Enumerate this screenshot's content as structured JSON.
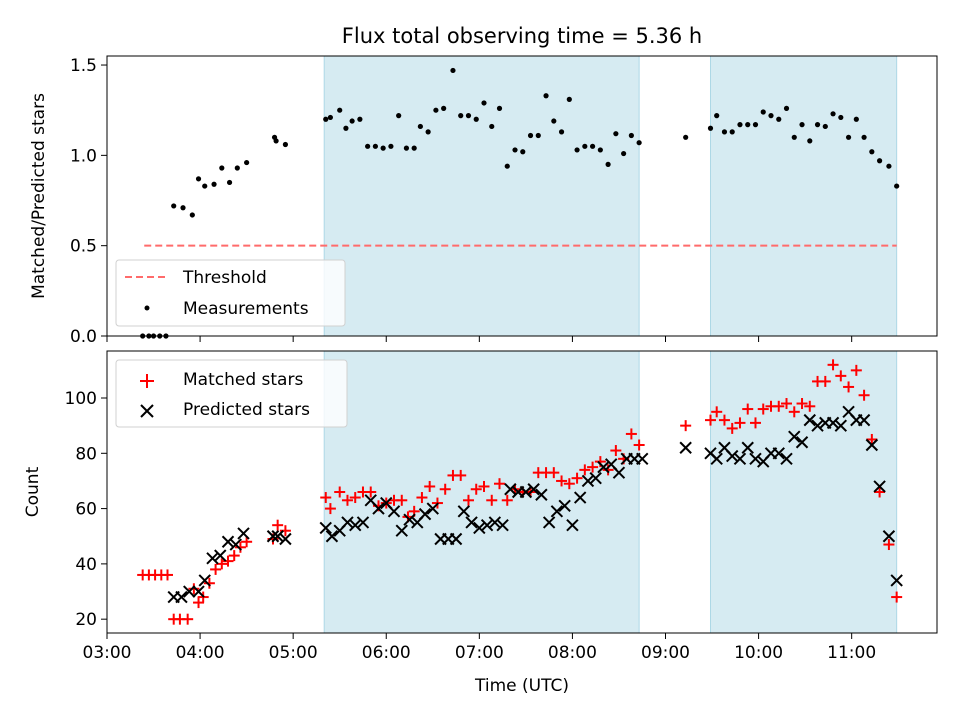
{
  "title": "Flux total observing time = 5.36 h",
  "colors": {
    "shade": "#add8e6",
    "threshold": "#ff6b6b",
    "measurement": "#000000",
    "matched": "#ff0000",
    "predicted": "#000000"
  },
  "chart_data": [
    {
      "type": "scatter",
      "panel": "top",
      "xlabel": "",
      "ylabel": "Matched/Predicted stars",
      "xlim": [
        "03:00",
        "11:55"
      ],
      "ylim": [
        0,
        1.55
      ],
      "yticks": [
        "0.0",
        "0.5",
        "1.0",
        "1.5"
      ],
      "shaded_intervals": [
        [
          "05:20",
          "08:43"
        ],
        [
          "09:29",
          "11:29"
        ]
      ],
      "legend_position": "lower-left",
      "legend": [
        "Threshold",
        "Measurements"
      ],
      "threshold": {
        "name": "Threshold",
        "y": 0.5,
        "x_range": [
          "03:24",
          "11:29"
        ]
      },
      "series": [
        {
          "name": "Measurements",
          "points": [
            [
              "03:23",
              0
            ],
            [
              "03:27",
              0
            ],
            [
              "03:30",
              0
            ],
            [
              "03:34",
              0
            ],
            [
              "03:38",
              0
            ],
            [
              "03:43",
              0.72
            ],
            [
              "03:49",
              0.71
            ],
            [
              "03:55",
              0.67
            ],
            [
              "03:59",
              0.87
            ],
            [
              "04:03",
              0.83
            ],
            [
              "04:09",
              0.84
            ],
            [
              "04:14",
              0.93
            ],
            [
              "04:19",
              0.85
            ],
            [
              "04:24",
              0.93
            ],
            [
              "04:30",
              0.96
            ],
            [
              "04:48",
              1.1
            ],
            [
              "04:49",
              1.08
            ],
            [
              "04:55",
              1.06
            ],
            [
              "05:21",
              1.2
            ],
            [
              "05:24",
              1.21
            ],
            [
              "05:30",
              1.25
            ],
            [
              "05:34",
              1.15
            ],
            [
              "05:38",
              1.19
            ],
            [
              "05:43",
              1.2
            ],
            [
              "05:48",
              1.05
            ],
            [
              "05:53",
              1.05
            ],
            [
              "05:58",
              1.04
            ],
            [
              "06:03",
              1.05
            ],
            [
              "06:08",
              1.22
            ],
            [
              "06:13",
              1.04
            ],
            [
              "06:18",
              1.04
            ],
            [
              "06:22",
              1.16
            ],
            [
              "06:27",
              1.13
            ],
            [
              "06:32",
              1.25
            ],
            [
              "06:37",
              1.26
            ],
            [
              "06:43",
              1.47
            ],
            [
              "06:48",
              1.22
            ],
            [
              "06:53",
              1.22
            ],
            [
              "06:58",
              1.2
            ],
            [
              "07:03",
              1.29
            ],
            [
              "07:08",
              1.16
            ],
            [
              "07:13",
              1.26
            ],
            [
              "07:18",
              0.94
            ],
            [
              "07:23",
              1.03
            ],
            [
              "07:28",
              1.02
            ],
            [
              "07:33",
              1.11
            ],
            [
              "07:38",
              1.11
            ],
            [
              "07:43",
              1.33
            ],
            [
              "07:48",
              1.19
            ],
            [
              "07:53",
              1.13
            ],
            [
              "07:58",
              1.31
            ],
            [
              "08:03",
              1.03
            ],
            [
              "08:08",
              1.05
            ],
            [
              "08:13",
              1.05
            ],
            [
              "08:18",
              1.03
            ],
            [
              "08:23",
              0.95
            ],
            [
              "08:28",
              1.12
            ],
            [
              "08:33",
              1.01
            ],
            [
              "08:38",
              1.11
            ],
            [
              "08:43",
              1.07
            ],
            [
              "09:13",
              1.1
            ],
            [
              "09:29",
              1.15
            ],
            [
              "09:33",
              1.22
            ],
            [
              "09:38",
              1.13
            ],
            [
              "09:43",
              1.13
            ],
            [
              "09:48",
              1.17
            ],
            [
              "09:53",
              1.17
            ],
            [
              "09:58",
              1.17
            ],
            [
              "10:03",
              1.24
            ],
            [
              "10:08",
              1.22
            ],
            [
              "10:13",
              1.2
            ],
            [
              "10:18",
              1.26
            ],
            [
              "10:23",
              1.1
            ],
            [
              "10:28",
              1.17
            ],
            [
              "10:33",
              1.08
            ],
            [
              "10:38",
              1.17
            ],
            [
              "10:43",
              1.16
            ],
            [
              "10:48",
              1.23
            ],
            [
              "10:53",
              1.21
            ],
            [
              "10:58",
              1.1
            ],
            [
              "11:03",
              1.2
            ],
            [
              "11:08",
              1.1
            ],
            [
              "11:13",
              1.02
            ],
            [
              "11:18",
              0.97
            ],
            [
              "11:24",
              0.94
            ],
            [
              "11:29",
              0.83
            ]
          ]
        }
      ]
    },
    {
      "type": "scatter",
      "panel": "bottom",
      "xlabel": "Time (UTC)",
      "ylabel": "Count",
      "xlim": [
        "03:00",
        "11:55"
      ],
      "ylim": [
        15,
        117
      ],
      "yticks": [
        "20",
        "40",
        "60",
        "80",
        "100"
      ],
      "xticks": [
        "03:00",
        "04:00",
        "05:00",
        "06:00",
        "07:00",
        "08:00",
        "09:00",
        "10:00",
        "11:00"
      ],
      "shaded_intervals": [
        [
          "05:20",
          "08:43"
        ],
        [
          "09:29",
          "11:29"
        ]
      ],
      "legend_position": "upper-left",
      "legend": [
        "Matched stars",
        "Predicted stars"
      ],
      "series": [
        {
          "name": "Matched stars",
          "marker": "plus",
          "points": [
            [
              "03:23",
              36
            ],
            [
              "03:27",
              36
            ],
            [
              "03:31",
              36
            ],
            [
              "03:35",
              36
            ],
            [
              "03:39",
              36
            ],
            [
              "03:43",
              20
            ],
            [
              "03:47",
              20
            ],
            [
              "03:52",
              20
            ],
            [
              "03:56",
              31
            ],
            [
              "03:59",
              26
            ],
            [
              "04:02",
              28
            ],
            [
              "04:06",
              33
            ],
            [
              "04:10",
              38
            ],
            [
              "04:14",
              40
            ],
            [
              "04:18",
              41
            ],
            [
              "04:22",
              43
            ],
            [
              "04:26",
              46
            ],
            [
              "04:30",
              48
            ],
            [
              "04:47",
              49
            ],
            [
              "04:50",
              54
            ],
            [
              "04:55",
              52
            ],
            [
              "05:21",
              64
            ],
            [
              "05:24",
              60
            ],
            [
              "05:30",
              66
            ],
            [
              "05:35",
              63
            ],
            [
              "05:40",
              64
            ],
            [
              "05:45",
              66
            ],
            [
              "05:50",
              66
            ],
            [
              "05:55",
              61
            ],
            [
              "06:00",
              62
            ],
            [
              "06:05",
              63
            ],
            [
              "06:10",
              63
            ],
            [
              "06:14",
              57
            ],
            [
              "06:18",
              59
            ],
            [
              "06:23",
              64
            ],
            [
              "06:28",
              68
            ],
            [
              "06:33",
              62
            ],
            [
              "06:38",
              67
            ],
            [
              "06:43",
              72
            ],
            [
              "06:48",
              72
            ],
            [
              "06:53",
              63
            ],
            [
              "06:58",
              67
            ],
            [
              "07:03",
              68
            ],
            [
              "07:08",
              63
            ],
            [
              "07:13",
              69
            ],
            [
              "07:18",
              63
            ],
            [
              "07:23",
              67
            ],
            [
              "07:28",
              66
            ],
            [
              "07:33",
              66
            ],
            [
              "07:38",
              73
            ],
            [
              "07:43",
              73
            ],
            [
              "07:48",
              73
            ],
            [
              "07:53",
              70
            ],
            [
              "07:58",
              69
            ],
            [
              "08:03",
              71
            ],
            [
              "08:08",
              74
            ],
            [
              "08:13",
              75
            ],
            [
              "08:18",
              77
            ],
            [
              "08:23",
              74
            ],
            [
              "08:28",
              81
            ],
            [
              "08:33",
              78
            ],
            [
              "08:38",
              87
            ],
            [
              "08:43",
              83
            ],
            [
              "09:13",
              90
            ],
            [
              "09:29",
              92
            ],
            [
              "09:33",
              95
            ],
            [
              "09:38",
              92
            ],
            [
              "09:43",
              89
            ],
            [
              "09:48",
              91
            ],
            [
              "09:53",
              96
            ],
            [
              "09:58",
              91
            ],
            [
              "10:03",
              96
            ],
            [
              "10:08",
              97
            ],
            [
              "10:13",
              97
            ],
            [
              "10:18",
              98
            ],
            [
              "10:23",
              95
            ],
            [
              "10:28",
              98
            ],
            [
              "10:33",
              97
            ],
            [
              "10:38",
              106
            ],
            [
              "10:43",
              106
            ],
            [
              "10:48",
              112
            ],
            [
              "10:53",
              108
            ],
            [
              "10:58",
              104
            ],
            [
              "11:03",
              110
            ],
            [
              "11:08",
              101
            ],
            [
              "11:13",
              85
            ],
            [
              "11:18",
              66
            ],
            [
              "11:24",
              47
            ],
            [
              "11:29",
              28
            ]
          ]
        },
        {
          "name": "Predicted stars",
          "marker": "x",
          "points": [
            [
              "03:43",
              28
            ],
            [
              "03:48",
              28
            ],
            [
              "03:53",
              30
            ],
            [
              "03:59",
              30
            ],
            [
              "04:03",
              34
            ],
            [
              "04:08",
              42
            ],
            [
              "04:13",
              43
            ],
            [
              "04:18",
              48
            ],
            [
              "04:23",
              47
            ],
            [
              "04:28",
              51
            ],
            [
              "04:47",
              50
            ],
            [
              "04:50",
              50
            ],
            [
              "04:55",
              49
            ],
            [
              "05:21",
              53
            ],
            [
              "05:25",
              50
            ],
            [
              "05:30",
              52
            ],
            [
              "05:35",
              55
            ],
            [
              "05:40",
              54
            ],
            [
              "05:45",
              55
            ],
            [
              "05:50",
              63
            ],
            [
              "05:55",
              60
            ],
            [
              "06:00",
              62
            ],
            [
              "06:05",
              59
            ],
            [
              "06:10",
              52
            ],
            [
              "06:15",
              56
            ],
            [
              "06:20",
              55
            ],
            [
              "06:25",
              58
            ],
            [
              "06:30",
              60
            ],
            [
              "06:35",
              49
            ],
            [
              "06:40",
              49
            ],
            [
              "06:45",
              49
            ],
            [
              "06:50",
              59
            ],
            [
              "06:55",
              55
            ],
            [
              "07:00",
              53
            ],
            [
              "07:05",
              54
            ],
            [
              "07:10",
              55
            ],
            [
              "07:15",
              54
            ],
            [
              "07:20",
              67
            ],
            [
              "07:25",
              66
            ],
            [
              "07:30",
              66
            ],
            [
              "07:35",
              67
            ],
            [
              "07:40",
              65
            ],
            [
              "07:45",
              55
            ],
            [
              "07:50",
              59
            ],
            [
              "07:55",
              61
            ],
            [
              "08:00",
              54
            ],
            [
              "08:05",
              64
            ],
            [
              "08:10",
              70
            ],
            [
              "08:15",
              71
            ],
            [
              "08:20",
              75
            ],
            [
              "08:25",
              76
            ],
            [
              "08:30",
              73
            ],
            [
              "08:35",
              78
            ],
            [
              "08:40",
              78
            ],
            [
              "08:45",
              78
            ],
            [
              "09:13",
              82
            ],
            [
              "09:29",
              80
            ],
            [
              "09:33",
              78
            ],
            [
              "09:38",
              82
            ],
            [
              "09:43",
              79
            ],
            [
              "09:48",
              78
            ],
            [
              "09:53",
              82
            ],
            [
              "09:58",
              78
            ],
            [
              "10:03",
              77
            ],
            [
              "10:08",
              80
            ],
            [
              "10:13",
              80
            ],
            [
              "10:18",
              78
            ],
            [
              "10:23",
              86
            ],
            [
              "10:28",
              84
            ],
            [
              "10:33",
              92
            ],
            [
              "10:38",
              90
            ],
            [
              "10:43",
              91
            ],
            [
              "10:48",
              91
            ],
            [
              "10:53",
              90
            ],
            [
              "10:58",
              95
            ],
            [
              "11:03",
              92
            ],
            [
              "11:08",
              92
            ],
            [
              "11:13",
              83
            ],
            [
              "11:18",
              68
            ],
            [
              "11:24",
              50
            ],
            [
              "11:29",
              34
            ]
          ]
        }
      ]
    }
  ]
}
